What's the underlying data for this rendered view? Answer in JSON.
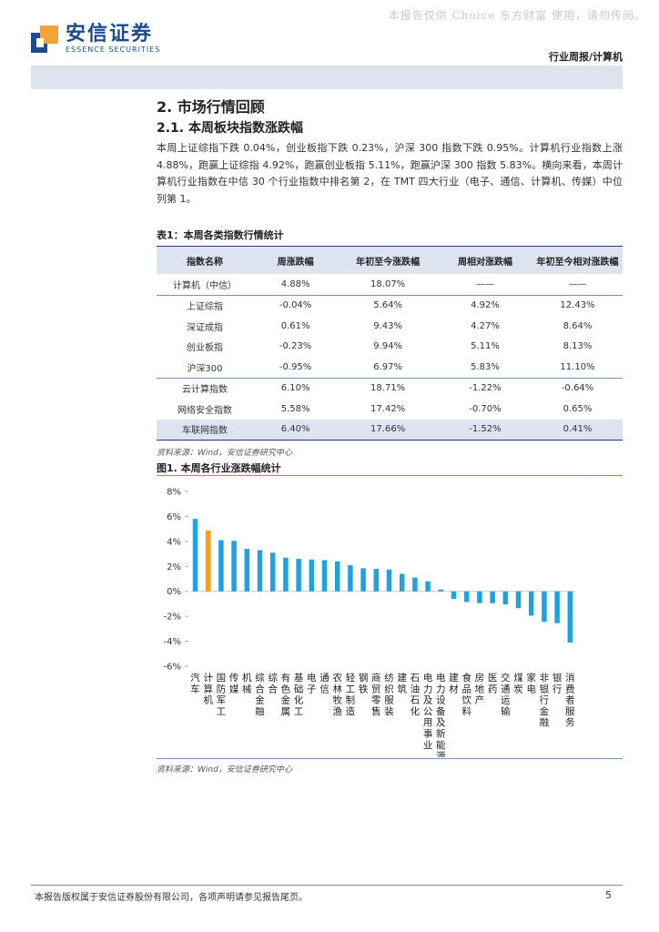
{
  "header": {
    "watermark": "本报告仅供 Choice 东方财富 使用，请勿传阅。",
    "logo_cn": "安信证券",
    "logo_en": "ESSENCE SECURITIES",
    "report_type": "行业周报/计算机"
  },
  "section": {
    "h1": "2. 市场行情回顾",
    "h2": "2.1. 本周板块指数涨跌幅",
    "paragraph": "本周上证综指下跌 0.04%，创业板指下跌 0.23%，沪深 300 指数下跌 0.95%。计算机行业指数上涨 4.88%，跑赢上证综指 4.92%，跑赢创业板指 5.11%，跑赢沪深 300 指数 5.83%。横向来看，本周计算机行业指数在中信 30 个行业指数中排名第 2，在 TMT 四大行业（电子、通信、计算机、传媒）中位列第 1。"
  },
  "table": {
    "title": "表1：本周各类指数行情统计",
    "headers": [
      "指数名称",
      "周涨跌幅",
      "年初至今涨跌幅",
      "周相对涨跌幅",
      "年初至今相对涨跌幅"
    ],
    "rows": [
      [
        "计算机（中信）",
        "4.88%",
        "18.07%",
        "——",
        "——"
      ],
      [
        "上证综指",
        "-0.04%",
        "5.64%",
        "4.92%",
        "12.43%"
      ],
      [
        "深证成指",
        "0.61%",
        "9.43%",
        "4.27%",
        "8.64%"
      ],
      [
        "创业板指",
        "-0.23%",
        "9.94%",
        "5.11%",
        "8.13%"
      ],
      [
        "沪深300",
        "-0.95%",
        "6.97%",
        "5.83%",
        "11.10%"
      ],
      [
        "云计算指数",
        "6.10%",
        "18.71%",
        "-1.22%",
        "-0.64%"
      ],
      [
        "网络安全指数",
        "5.58%",
        "17.42%",
        "-0.70%",
        "0.65%"
      ],
      [
        "车联网指数",
        "6.40%",
        "17.66%",
        "-1.52%",
        "0.41%"
      ]
    ],
    "source": "资料来源：Wind，安信证券研究中心"
  },
  "figure": {
    "title": "图1. 本周各行业涨跌幅统计",
    "source": "资料来源：Wind，安信证券研究中心"
  },
  "chart_data": {
    "type": "bar",
    "categories": [
      "汽车",
      "计算机",
      "国防军工",
      "传媒",
      "机械",
      "综合金融",
      "综合",
      "有色金属",
      "基础化工",
      "电子",
      "通信",
      "农林牧渔",
      "轻工制造",
      "钢铁",
      "商贸零售",
      "纺织服装",
      "建筑",
      "石油石化",
      "电力及公用事业",
      "电力设备及新能源",
      "建材",
      "食品饮料",
      "房地产",
      "医药",
      "交通运输",
      "煤炭",
      "家电",
      "非银行金融",
      "银行",
      "消费者服务"
    ],
    "values": [
      5.8,
      4.88,
      4.1,
      4.05,
      3.4,
      3.3,
      3.1,
      2.7,
      2.6,
      2.55,
      2.5,
      2.4,
      2.1,
      1.85,
      1.8,
      1.75,
      1.4,
      1.1,
      0.8,
      0.15,
      -0.6,
      -0.85,
      -0.95,
      -0.95,
      -1.05,
      -1.35,
      -1.95,
      -2.45,
      -2.55,
      -4.1
    ],
    "ylim": [
      -6,
      8
    ],
    "yticks": [
      "8%",
      "6%",
      "4%",
      "2%",
      "0%",
      "-2%",
      "-4%",
      "-6%"
    ],
    "ytick_values": [
      8,
      6,
      4,
      2,
      0,
      -2,
      -4,
      -6
    ],
    "colors": {
      "default": "#1fa2e0",
      "highlight": "#f5a020"
    },
    "highlight_category": "计算机",
    "grid": false
  },
  "footer": {
    "text": "本报告版权属于安信证券股份有限公司，各项声明请参见报告尾页。",
    "page": "5"
  }
}
